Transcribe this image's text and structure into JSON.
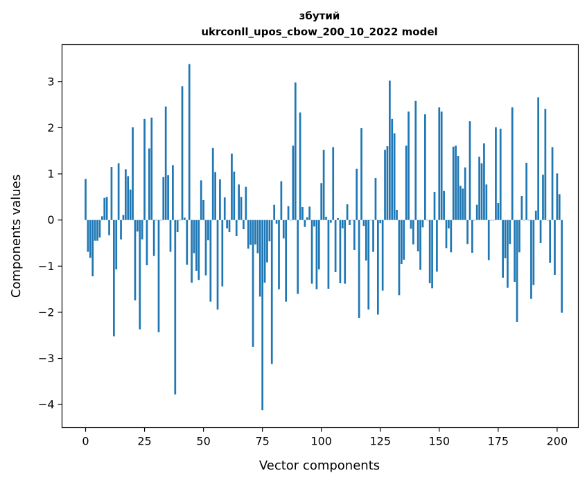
{
  "chart_data": {
    "type": "bar",
    "title_lines": [
      "збутий",
      "ukrconll_upos_cbow_200_10_2022 model"
    ],
    "xlabel": "Vector components",
    "ylabel": "Components values",
    "xlim": [
      -10,
      209
    ],
    "ylim": [
      -4.5,
      3.8
    ],
    "xticks": [
      0,
      25,
      50,
      75,
      100,
      125,
      150,
      175,
      200
    ],
    "yticks": [
      -4,
      -3,
      -2,
      -1,
      0,
      1,
      2,
      3
    ],
    "bar_color": "#1f77b4",
    "grid": false,
    "values": [
      0.89,
      -0.69,
      -0.82,
      -1.22,
      -0.45,
      -0.45,
      -0.38,
      0.08,
      0.48,
      0.5,
      -0.33,
      1.15,
      -2.52,
      -1.07,
      1.23,
      -0.42,
      0.11,
      1.1,
      0.95,
      0.66,
      2.01,
      -1.74,
      -0.25,
      -2.37,
      -0.42,
      2.19,
      -0.98,
      1.55,
      2.22,
      -0.78,
      0.0,
      -2.43,
      0.0,
      0.93,
      2.46,
      0.97,
      -0.69,
      1.19,
      -3.78,
      -0.26,
      0.0,
      2.9,
      0.05,
      -0.97,
      3.38,
      -1.36,
      -0.72,
      -1.1,
      -1.3,
      0.86,
      0.43,
      -1.2,
      -0.44,
      -1.77,
      1.56,
      1.04,
      -1.94,
      0.88,
      -1.44,
      0.49,
      -0.18,
      -0.26,
      1.44,
      1.05,
      -0.35,
      0.77,
      0.5,
      -0.2,
      0.72,
      -0.62,
      -0.54,
      -2.75,
      -0.53,
      -0.72,
      -1.66,
      -4.12,
      -1.36,
      -0.92,
      -0.46,
      -3.12,
      0.33,
      -0.08,
      -1.5,
      0.84,
      -0.4,
      -1.77,
      0.3,
      0.0,
      1.61,
      2.98,
      -1.6,
      2.33,
      0.28,
      -0.15,
      0.06,
      0.29,
      -1.38,
      -0.14,
      -1.5,
      -1.07,
      0.8,
      1.52,
      0.07,
      -1.49,
      -0.06,
      1.58,
      -1.13,
      0.04,
      -1.37,
      -0.18,
      -1.38,
      0.34,
      -0.11,
      0.0,
      -0.65,
      1.11,
      -2.12,
      1.99,
      -0.13,
      -0.88,
      -1.94,
      0.0,
      -0.69,
      0.91,
      -2.05,
      -0.07,
      -1.53,
      1.52,
      1.6,
      3.02,
      2.19,
      1.88,
      0.22,
      -1.63,
      -0.95,
      -0.86,
      1.61,
      2.35,
      -0.19,
      -0.53,
      2.58,
      -0.68,
      -1.08,
      -0.16,
      2.29,
      0.0,
      -1.37,
      -1.48,
      0.61,
      -1.12,
      2.44,
      2.35,
      0.63,
      -0.61,
      -0.18,
      -0.7,
      1.59,
      1.61,
      1.39,
      0.74,
      0.68,
      1.14,
      -0.52,
      2.14,
      -0.71,
      0.0,
      0.33,
      1.37,
      1.23,
      1.66,
      0.77,
      -0.87,
      0.0,
      0.0,
      2.01,
      0.37,
      1.98,
      -1.25,
      -0.83,
      -1.47,
      -0.52,
      2.44,
      -1.34,
      -2.21,
      -0.7,
      0.52,
      0.0,
      1.24,
      0.0,
      -1.71,
      -1.41,
      0.2,
      2.66,
      -0.5,
      0.98,
      2.41,
      0.0,
      -0.93,
      1.58,
      -1.19,
      1.01,
      0.56,
      -2.01
    ]
  }
}
